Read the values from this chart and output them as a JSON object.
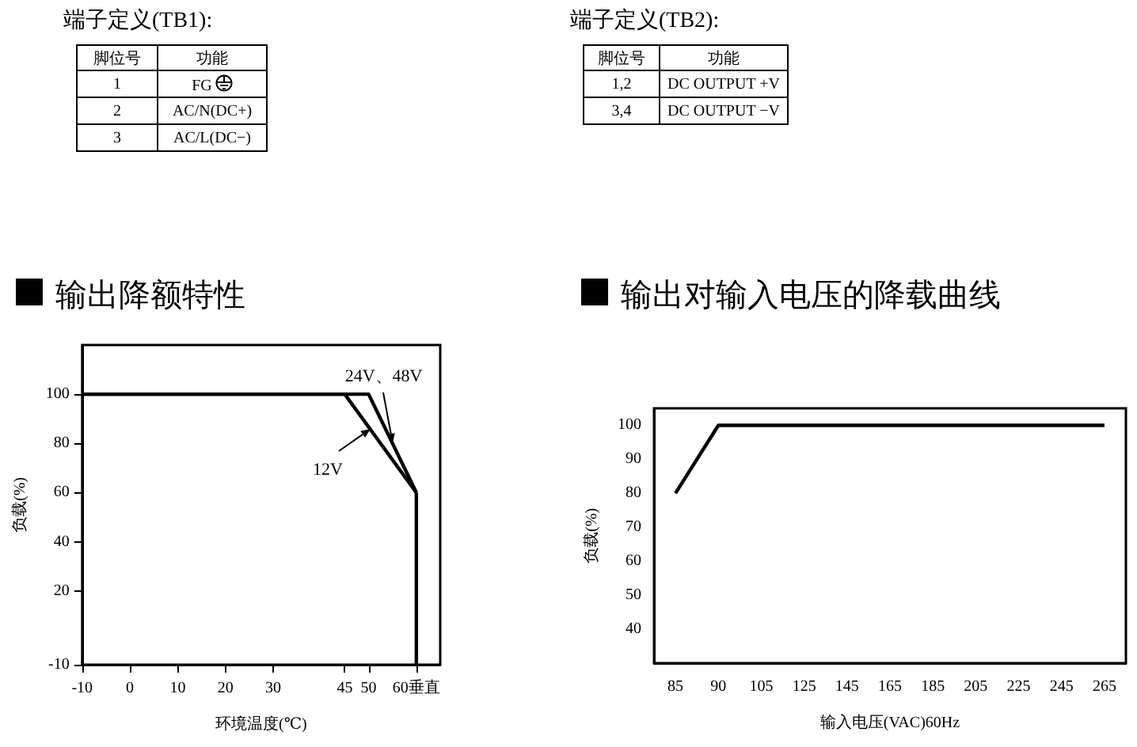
{
  "chart_data": [
    {
      "type": "other",
      "title": "端子定义(TB1):",
      "categories": [
        "脚位号",
        "功能"
      ],
      "cell_labels": [
        [
          "1",
          "FG"
        ],
        [
          "2",
          "AC/N(DC+)"
        ],
        [
          "3",
          "AC/L(DC−)"
        ]
      ]
    },
    {
      "type": "other",
      "title": "端子定义(TB2):",
      "categories": [
        "脚位号",
        "功能"
      ],
      "cell_labels": [
        [
          "1,2",
          "DC OUTPUT +V"
        ],
        [
          "3,4",
          "DC OUTPUT −V"
        ]
      ]
    },
    {
      "type": "line",
      "title": "输出降额特性",
      "xlabel": "环境温度(℃)",
      "ylabel": "负载(%)",
      "xlim": [
        -10,
        65
      ],
      "ylim": [
        -10,
        120
      ],
      "xticks": [
        -10,
        0,
        10,
        20,
        30,
        45,
        50,
        {
          "value": 60,
          "label": "60垂直"
        }
      ],
      "yticks": [
        -10,
        20,
        40,
        60,
        80,
        100
      ],
      "marker": "none",
      "series": [
        {
          "name": "12V",
          "color": "#000000",
          "x": [
            -10,
            45,
            60
          ],
          "values": [
            100,
            100,
            60
          ]
        },
        {
          "name": "24V、48V",
          "color": "#000000",
          "x": [
            -10,
            50,
            60
          ],
          "values": [
            100,
            100,
            60
          ]
        },
        {
          "color": "#000000",
          "x": [
            60,
            60
          ],
          "values": [
            60,
            -10
          ]
        }
      ]
    },
    {
      "type": "line",
      "title": "输出对输入电压的降载曲线",
      "xlabel": "输入电压(VAC)60Hz",
      "ylabel": "负载(%)",
      "categories": [
        "85",
        "90",
        "105",
        "125",
        "145",
        "165",
        "185",
        "205",
        "225",
        "245",
        "265"
      ],
      "ylim": [
        30,
        105
      ],
      "yticks": [
        40,
        50,
        60,
        70,
        80,
        90,
        100
      ],
      "marker": "none",
      "series": [
        {
          "color": "#000000",
          "values": [
            80,
            100,
            100,
            100,
            100,
            100,
            100,
            100,
            100,
            100,
            100
          ]
        }
      ]
    }
  ]
}
